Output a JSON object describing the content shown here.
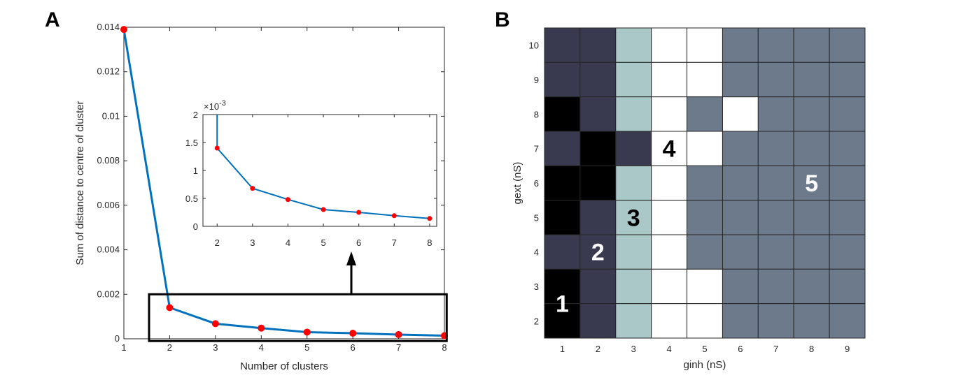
{
  "chart_data": [
    {
      "panel": "A",
      "type": "line",
      "xlabel": "Number of clusters",
      "ylabel": "Sum of distance to centre of cluster",
      "xlim": [
        1,
        8
      ],
      "ylim": [
        0,
        0.014
      ],
      "xticks": [
        1,
        2,
        3,
        4,
        5,
        6,
        7,
        8
      ],
      "yticks": [
        0,
        0.002,
        0.004,
        0.006,
        0.008,
        0.01,
        0.012,
        0.014
      ],
      "x": [
        1,
        2,
        3,
        4,
        5,
        6,
        7,
        8
      ],
      "y": [
        0.0139,
        0.0014,
        0.00068,
        0.00048,
        0.0003,
        0.00025,
        0.00019,
        0.00014
      ],
      "line_color": "#0072bd",
      "marker_color": "#ff0000",
      "highlight_box": {
        "x": [
          1.55,
          8.05
        ],
        "y": [
          -0.0001,
          0.002
        ]
      },
      "inset": {
        "xlim": [
          1.6,
          8.2
        ],
        "ylim": [
          0,
          2
        ],
        "xticks": [
          2,
          3,
          4,
          5,
          6,
          7,
          8
        ],
        "yticks": [
          0,
          0.5,
          1,
          1.5,
          2
        ],
        "ytick_labels": [
          "0",
          "0.5",
          "1",
          "1.5",
          "2"
        ],
        "exponent_label": "×10",
        "exponent": "-3",
        "x": [
          2,
          3,
          4,
          5,
          6,
          7,
          8
        ],
        "y": [
          1.4,
          0.68,
          0.48,
          0.3,
          0.25,
          0.19,
          0.14
        ]
      }
    },
    {
      "panel": "B",
      "type": "heatmap",
      "xlabel": "ginh (nS)",
      "ylabel": "gext (nS)",
      "x_categories": [
        "1",
        "2",
        "3",
        "4",
        "5",
        "6",
        "7",
        "8",
        "9"
      ],
      "y_categories": [
        "10",
        "9",
        "8",
        "7",
        "6",
        "5",
        "4",
        "3",
        "2"
      ],
      "cells": [
        [
          2,
          2,
          3,
          4,
          4,
          5,
          5,
          5,
          5
        ],
        [
          2,
          2,
          3,
          4,
          4,
          5,
          5,
          5,
          5
        ],
        [
          1,
          2,
          3,
          4,
          5,
          4,
          5,
          5,
          5
        ],
        [
          2,
          1,
          2,
          4,
          4,
          5,
          5,
          5,
          5
        ],
        [
          1,
          1,
          3,
          4,
          5,
          5,
          5,
          5,
          5
        ],
        [
          1,
          2,
          3,
          4,
          5,
          5,
          5,
          5,
          5
        ],
        [
          2,
          2,
          3,
          4,
          5,
          5,
          5,
          5,
          5
        ],
        [
          1,
          2,
          3,
          4,
          4,
          5,
          5,
          5,
          5
        ],
        [
          1,
          2,
          3,
          4,
          4,
          5,
          5,
          5,
          5
        ]
      ],
      "cluster_colors": {
        "1": "#000000",
        "2": "#393a4f",
        "3": "#a9c8c7",
        "4": "#ffffff",
        "5": "#6d7a8c"
      },
      "cluster_labels": [
        {
          "text": "1",
          "col": 1,
          "row": "2.5",
          "color": "#ffffff"
        },
        {
          "text": "2",
          "col": 2,
          "row": "4",
          "color": "#ffffff"
        },
        {
          "text": "3",
          "col": 3,
          "row": "5",
          "color": "#000000"
        },
        {
          "text": "4",
          "col": 4,
          "row": "7",
          "color": "#000000"
        },
        {
          "text": "5",
          "col": 8,
          "row": "6",
          "color": "#ffffff"
        }
      ]
    }
  ]
}
